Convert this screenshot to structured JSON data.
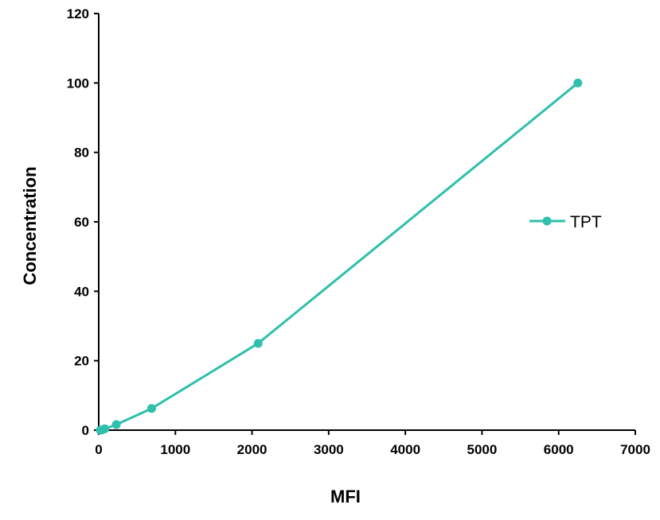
{
  "chart_data": {
    "type": "line",
    "title": "",
    "xlabel": "MFI",
    "ylabel": "Concentration",
    "xlim": [
      0,
      7000
    ],
    "ylim": [
      0,
      120
    ],
    "x_ticks": [
      0,
      1000,
      2000,
      3000,
      4000,
      5000,
      6000,
      7000
    ],
    "y_ticks": [
      0,
      20,
      40,
      60,
      80,
      100,
      120
    ],
    "grid": false,
    "legend_position": "right",
    "series": [
      {
        "name": "TPT",
        "color": "#2ebfad",
        "marker": "circle",
        "points": [
          {
            "x": 20,
            "y": 0
          },
          {
            "x": 45,
            "y": 0.1
          },
          {
            "x": 80,
            "y": 0.4
          },
          {
            "x": 230,
            "y": 1.6
          },
          {
            "x": 690,
            "y": 6.25
          },
          {
            "x": 2080,
            "y": 25
          },
          {
            "x": 6250,
            "y": 100
          }
        ]
      }
    ]
  }
}
